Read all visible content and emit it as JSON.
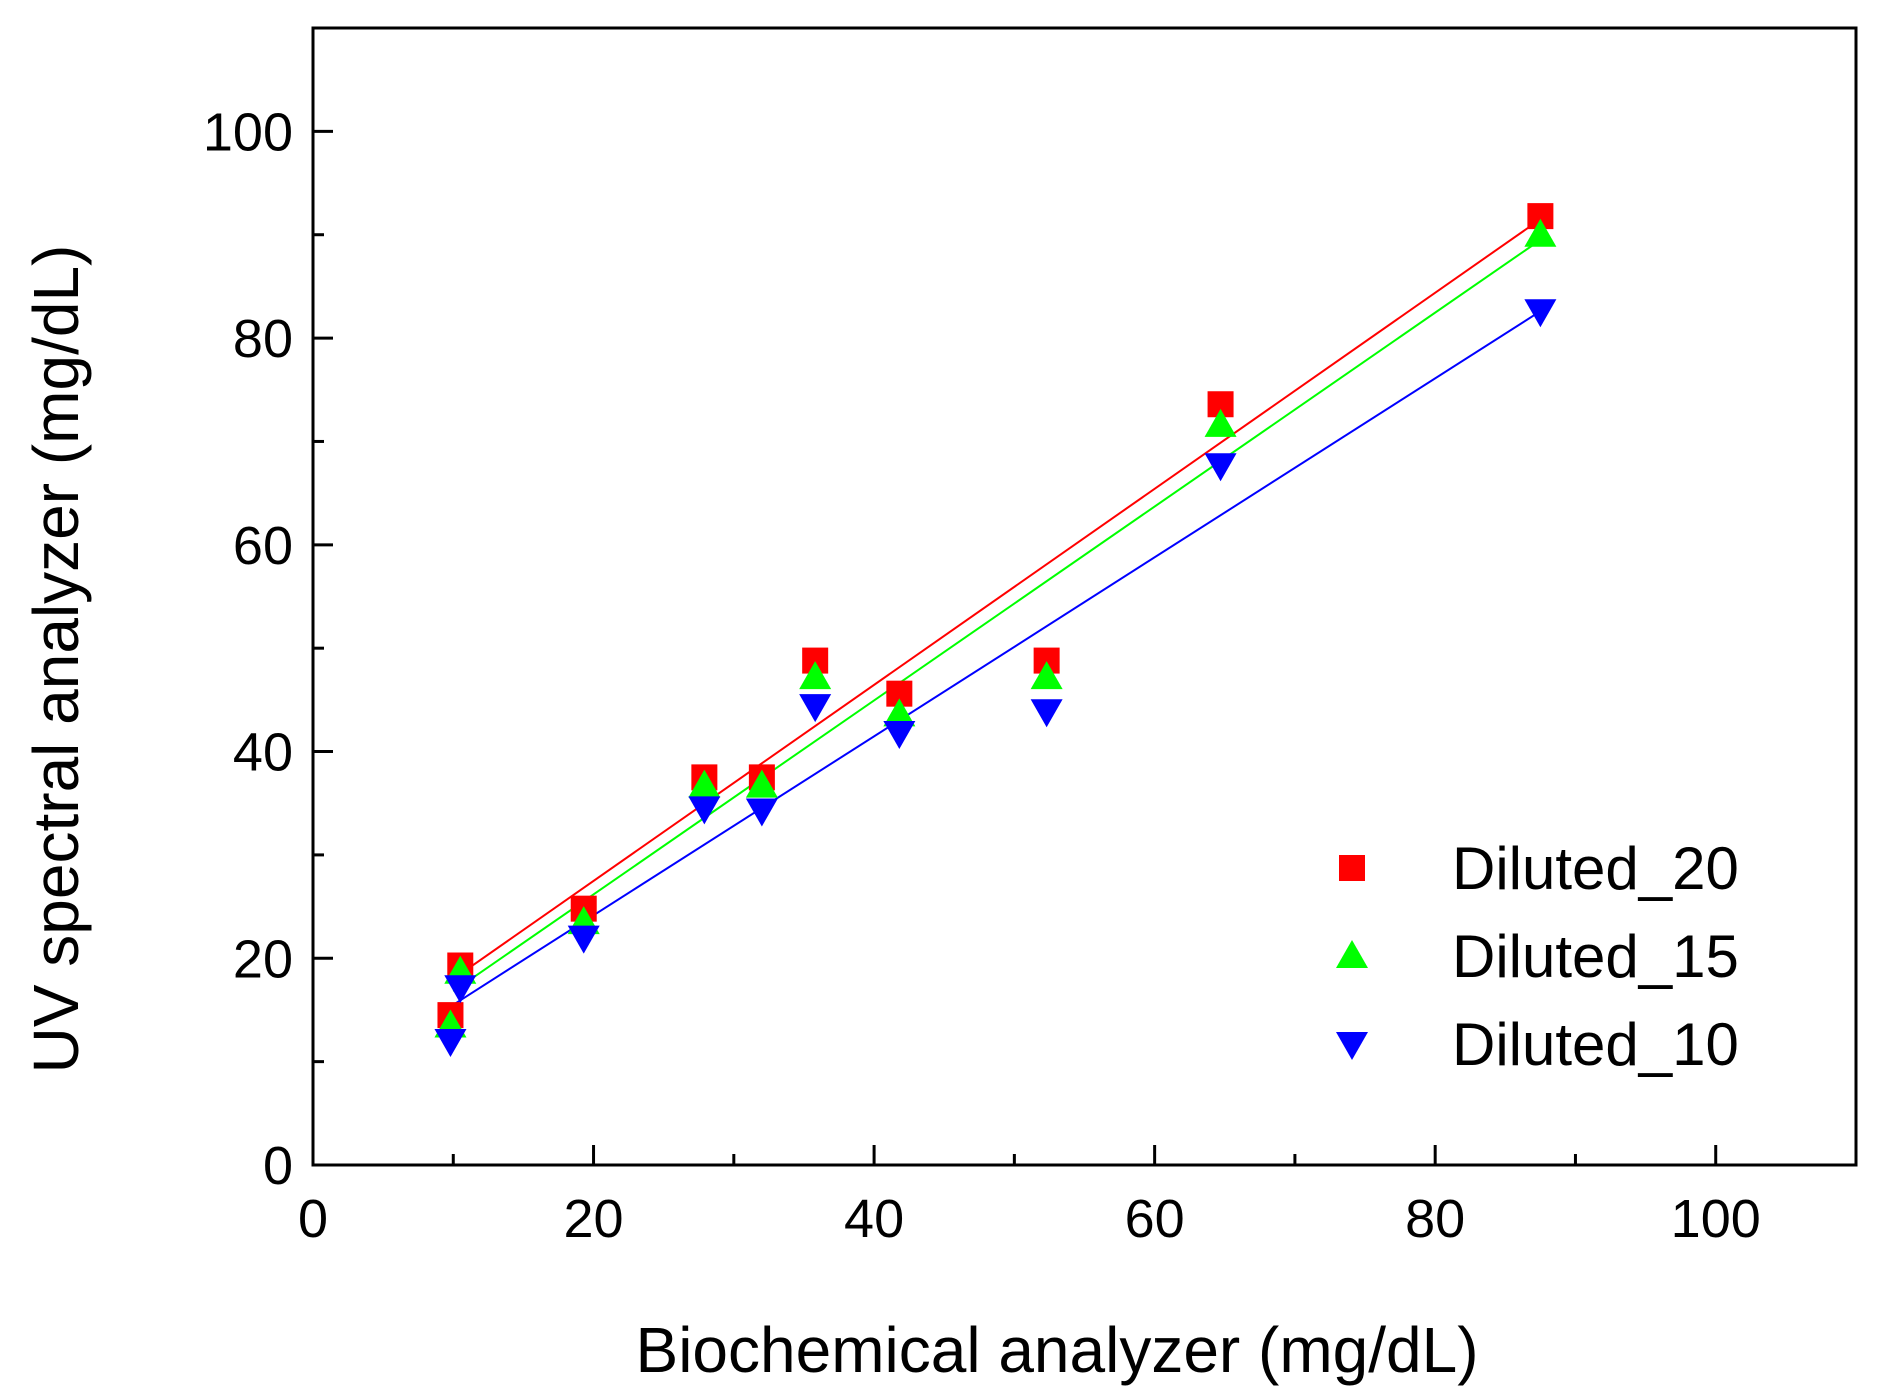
{
  "chart_data": {
    "type": "scatter",
    "title": "",
    "xlabel": "Biochemical analyzer (mg/dL)",
    "ylabel": "UV spectral analyzer (mg/dL)",
    "xlim": [
      0,
      110
    ],
    "ylim": [
      0,
      110
    ],
    "xticks": [
      0,
      20,
      40,
      60,
      80,
      100
    ],
    "yticks": [
      0,
      20,
      40,
      60,
      80,
      100
    ],
    "xtick_labels": [
      "0",
      "20",
      "40",
      "60",
      "80",
      "100"
    ],
    "ytick_labels": [
      "0",
      "20",
      "40",
      "60",
      "80",
      "100"
    ],
    "minor_tick_step": 10,
    "grid": false,
    "legend_position": "bottom-right",
    "series": [
      {
        "name": "Diluted_20",
        "marker": "square",
        "color": "#ff0000",
        "x": [
          9.8,
          10.5,
          19.3,
          27.9,
          32.0,
          35.8,
          41.8,
          52.3,
          64.7,
          87.5
        ],
        "y": [
          14.5,
          19.3,
          24.8,
          37.5,
          37.5,
          48.8,
          45.6,
          48.8,
          73.6,
          91.8
        ],
        "fit": [
          [
            10.0,
            18.0
          ],
          [
            87.5,
            91.5
          ]
        ]
      },
      {
        "name": "Diluted_15",
        "marker": "triangle-up",
        "color": "#00ff00",
        "x": [
          9.8,
          10.5,
          19.3,
          27.9,
          32.0,
          35.8,
          41.8,
          52.3,
          64.7,
          87.5
        ],
        "y": [
          13.5,
          18.7,
          23.5,
          36.7,
          36.7,
          47.2,
          43.6,
          47.2,
          71.6,
          90.0
        ],
        "fit": [
          [
            10.0,
            16.8
          ],
          [
            87.5,
            89.5
          ]
        ]
      },
      {
        "name": "Diluted_10",
        "marker": "triangle-down",
        "color": "#0000ff",
        "x": [
          9.8,
          10.5,
          19.3,
          27.9,
          32.0,
          35.8,
          41.8,
          52.3,
          64.7,
          87.5
        ],
        "y": [
          12.0,
          17.2,
          22.0,
          34.5,
          34.3,
          44.4,
          41.8,
          43.9,
          67.7,
          82.6
        ],
        "fit": [
          [
            10.0,
            15.5
          ],
          [
            87.5,
            82.6
          ]
        ]
      }
    ]
  }
}
